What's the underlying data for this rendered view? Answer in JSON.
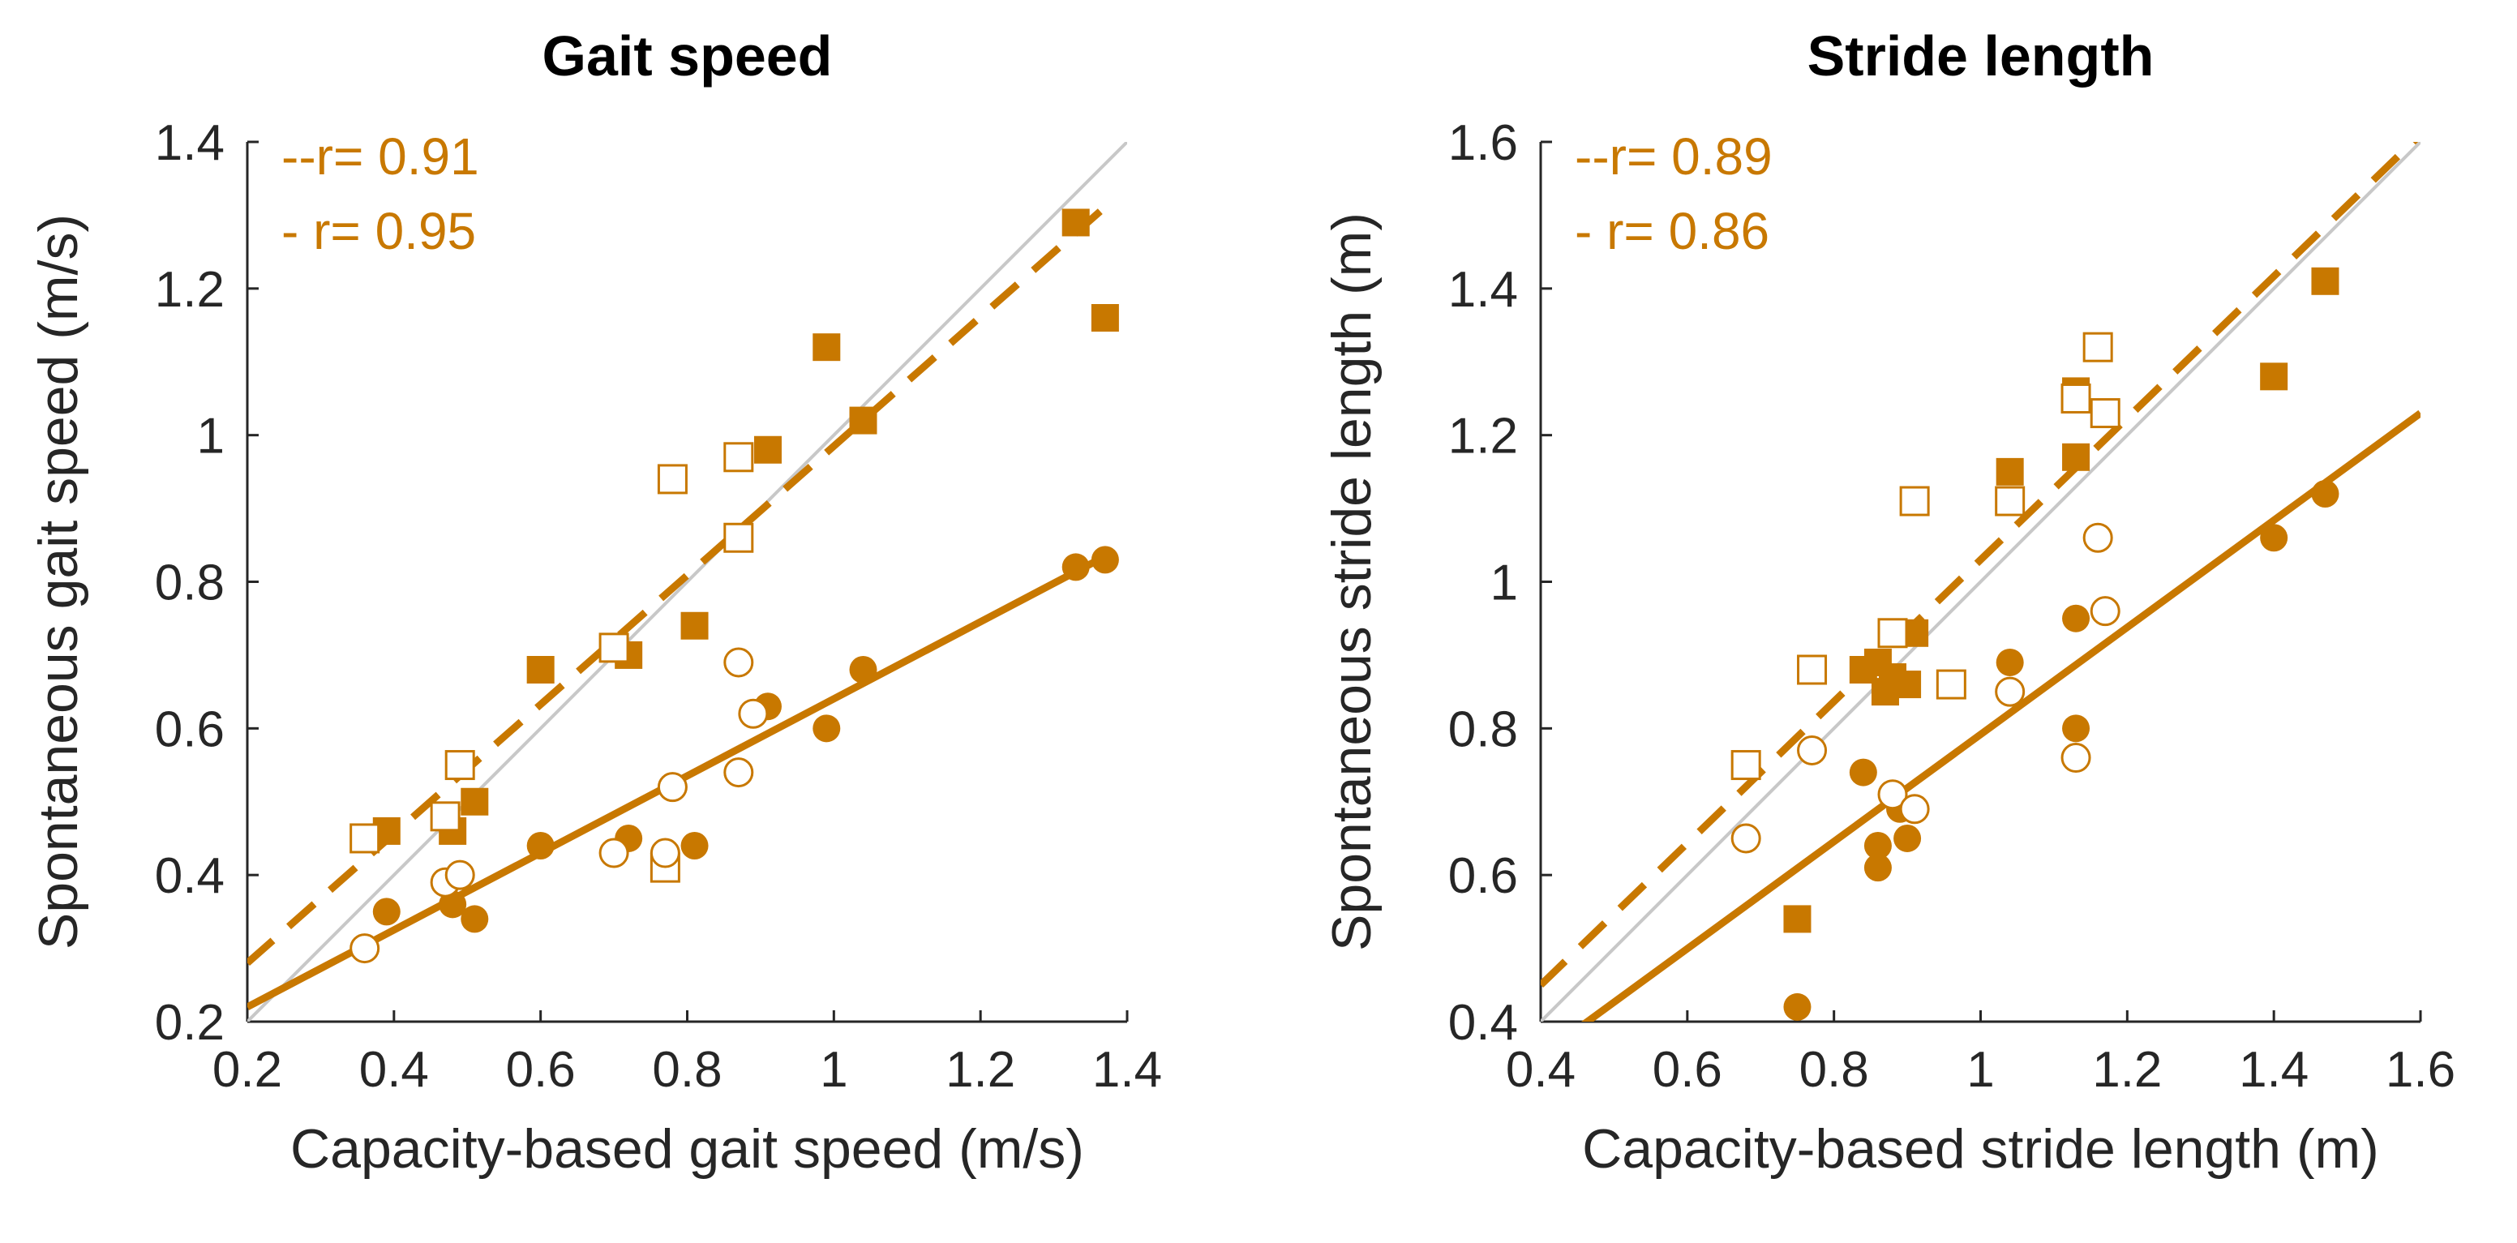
{
  "figure": {
    "accent_color": "#C87800",
    "identity_line_color": "#C8C8C8",
    "axis_color": "#262626"
  },
  "chart_data": [
    {
      "type": "scatter",
      "title": "Gait speed",
      "xlabel": "Capacity-based gait speed (m/s)",
      "ylabel": "Spontaneous gait speed (m/s)",
      "xlim": [
        0.2,
        1.4
      ],
      "ylim": [
        0.2,
        1.4
      ],
      "xticks": [
        "0.2",
        "0.4",
        "0.6",
        "0.8",
        "1",
        "1.2",
        "1.4"
      ],
      "yticks": [
        "0.2",
        "0.4",
        "0.6",
        "0.8",
        "1",
        "1.2",
        "1.4"
      ],
      "legend": [
        "--r= 0.91",
        "- r= 0.95"
      ],
      "identity_line": true,
      "series": [
        {
          "name": "squares filled",
          "marker": "square",
          "filled": true,
          "x": [
            0.39,
            0.48,
            0.51,
            0.6,
            0.72,
            0.81,
            0.91,
            0.99,
            1.04,
            1.33,
            1.37
          ],
          "y": [
            0.46,
            0.46,
            0.5,
            0.68,
            0.7,
            0.74,
            0.98,
            1.12,
            1.02,
            1.29,
            1.16
          ]
        },
        {
          "name": "squares open",
          "marker": "square",
          "filled": false,
          "x": [
            0.36,
            0.47,
            0.49,
            0.7,
            0.77,
            0.78,
            0.87,
            0.87
          ],
          "y": [
            0.45,
            0.48,
            0.55,
            0.71,
            0.41,
            0.94,
            0.97,
            0.86
          ]
        },
        {
          "name": "circles filled",
          "marker": "circle",
          "filled": true,
          "x": [
            0.39,
            0.48,
            0.51,
            0.6,
            0.72,
            0.81,
            0.91,
            0.99,
            1.04,
            1.33,
            1.37
          ],
          "y": [
            0.35,
            0.36,
            0.34,
            0.44,
            0.45,
            0.44,
            0.63,
            0.6,
            0.68,
            0.82,
            0.83
          ]
        },
        {
          "name": "circles open",
          "marker": "circle",
          "filled": false,
          "x": [
            0.36,
            0.47,
            0.49,
            0.7,
            0.77,
            0.78,
            0.87,
            0.87,
            0.89
          ],
          "y": [
            0.3,
            0.39,
            0.4,
            0.43,
            0.43,
            0.52,
            0.69,
            0.54,
            0.62
          ]
        },
        {
          "name": "fit dashed",
          "type": "line",
          "style": "dashed",
          "x": [
            0.2,
            1.38
          ],
          "y": [
            0.28,
            1.32
          ]
        },
        {
          "name": "fit solid",
          "type": "line",
          "style": "solid",
          "x": [
            0.2,
            1.38
          ],
          "y": [
            0.22,
            0.84
          ]
        }
      ]
    },
    {
      "type": "scatter",
      "title": "Stride length",
      "xlabel": "Capacity-based stride length (m)",
      "ylabel": "Spontaneous stride length (m)",
      "xlim": [
        0.4,
        1.6
      ],
      "ylim": [
        0.4,
        1.6
      ],
      "xticks": [
        "0.4",
        "0.6",
        "0.8",
        "1",
        "1.2",
        "1.4",
        "1.6"
      ],
      "yticks": [
        "0.4",
        "0.6",
        "0.8",
        "1",
        "1.2",
        "1.4",
        "1.6"
      ],
      "legend": [
        "--r= 0.89",
        "- r= 0.86"
      ],
      "identity_line": true,
      "series": [
        {
          "name": "squares filled",
          "marker": "square",
          "filled": true,
          "x": [
            0.75,
            0.84,
            0.86,
            0.87,
            0.88,
            0.9,
            0.91,
            1.04,
            1.13,
            1.13,
            1.4,
            1.47
          ],
          "y": [
            0.54,
            0.88,
            0.89,
            0.85,
            0.87,
            0.86,
            0.93,
            1.15,
            1.26,
            1.17,
            1.28,
            1.41
          ]
        },
        {
          "name": "squares open",
          "marker": "square",
          "filled": false,
          "x": [
            0.68,
            0.77,
            0.88,
            0.91,
            0.96,
            1.04,
            1.13,
            1.16,
            1.17
          ],
          "y": [
            0.75,
            0.88,
            0.93,
            1.11,
            0.86,
            1.11,
            1.25,
            1.32,
            1.23
          ]
        },
        {
          "name": "circles filled",
          "marker": "circle",
          "filled": true,
          "x": [
            0.75,
            0.84,
            0.86,
            0.86,
            0.89,
            0.9,
            1.04,
            1.13,
            1.13,
            1.4,
            1.47
          ],
          "y": [
            0.42,
            0.74,
            0.64,
            0.61,
            0.69,
            0.65,
            0.89,
            0.95,
            0.8,
            1.06,
            1.12
          ]
        },
        {
          "name": "circles open",
          "marker": "circle",
          "filled": false,
          "x": [
            0.68,
            0.77,
            0.88,
            0.91,
            1.04,
            1.13,
            1.16,
            1.17
          ],
          "y": [
            0.65,
            0.77,
            0.71,
            0.69,
            0.85,
            0.76,
            1.06,
            0.96
          ]
        },
        {
          "name": "fit dashed",
          "type": "line",
          "style": "dashed",
          "x": [
            0.4,
            1.6
          ],
          "y": [
            0.45,
            1.61
          ]
        },
        {
          "name": "fit solid",
          "type": "line",
          "style": "solid",
          "x": [
            0.45,
            1.6
          ],
          "y": [
            0.39,
            1.23
          ]
        }
      ]
    }
  ]
}
